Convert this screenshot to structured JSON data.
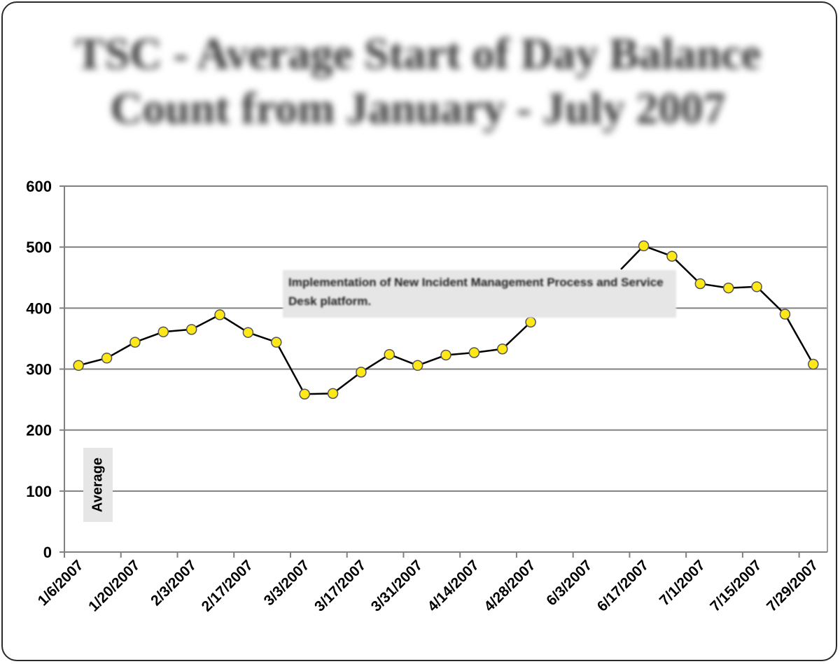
{
  "chart_data": {
    "type": "line",
    "title": "TSC - Average Start of Day Balance Count from January - July 2007",
    "title_lines": [
      "TSC - Average Start of Day Balance",
      "Count from January - July 2007"
    ],
    "ylabel": "Average",
    "ylim": [
      0,
      600
    ],
    "yticks": [
      0,
      100,
      200,
      300,
      400,
      500,
      600
    ],
    "x_tick_labels": [
      "1/6/2007",
      "1/20/2007",
      "2/3/2007",
      "2/17/2007",
      "3/3/2007",
      "3/17/2007",
      "3/31/2007",
      "4/14/2007",
      "4/28/2007",
      "6/3/2007",
      "6/17/2007",
      "7/1/2007",
      "7/15/2007",
      "7/29/2007"
    ],
    "x": [
      "1/6/2007",
      "1/13/2007",
      "1/20/2007",
      "1/27/2007",
      "2/3/2007",
      "2/10/2007",
      "2/17/2007",
      "2/24/2007",
      "3/3/2007",
      "3/10/2007",
      "3/17/2007",
      "3/24/2007",
      "3/31/2007",
      "4/7/2007",
      "4/14/2007",
      "4/21/2007",
      "4/28/2007",
      "5/5/2007",
      "6/3/2007",
      "6/10/2007",
      "6/17/2007",
      "6/24/2007",
      "7/1/2007",
      "7/8/2007",
      "7/15/2007",
      "7/22/2007",
      "7/29/2007"
    ],
    "series": [
      {
        "values": [
          306,
          318,
          344,
          361,
          365,
          389,
          360,
          344,
          259,
          260,
          295,
          324,
          306,
          323,
          327,
          333,
          377,
          null,
          null,
          null,
          502,
          485,
          440,
          433,
          435,
          390,
          308
        ]
      }
    ],
    "grid": true,
    "annotation": "Implementation of New Incident Management Process and Service Desk platform.",
    "colors": {
      "line": "#000000",
      "marker_fill": "#ffe817",
      "marker_stroke": "#555555",
      "grid": "#808080"
    }
  }
}
